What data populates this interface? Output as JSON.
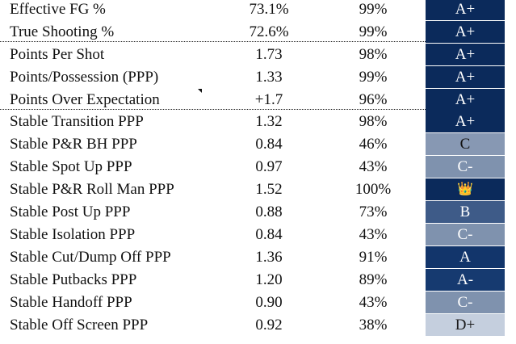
{
  "table": {
    "rows": [
      [
        "Effective FG %",
        "73.1%",
        "99%",
        "A+"
      ],
      [
        "True Shooting %",
        "72.6%",
        "99%",
        "A+"
      ],
      [
        "Points Per Shot",
        "1.73",
        "98%",
        "A+"
      ],
      [
        "Points/Possession (PPP)",
        "1.33",
        "99%",
        "A+"
      ],
      [
        "Points Over Expectation",
        "+1.7",
        "96%",
        "A+"
      ],
      [
        "Stable Transition PPP",
        "1.32",
        "98%",
        "A+"
      ],
      [
        "Stable P&R BH PPP",
        "0.84",
        "46%",
        "C"
      ],
      [
        "Stable Spot Up PPP",
        "0.97",
        "43%",
        "C-"
      ],
      [
        "Stable P&R Roll Man PPP",
        "1.52",
        "100%",
        "👑"
      ],
      [
        "Stable Post Up PPP",
        "0.88",
        "73%",
        "B"
      ],
      [
        "Stable Isolation PPP",
        "0.84",
        "43%",
        "C-"
      ],
      [
        "Stable Cut/Dump Off PPP",
        "1.36",
        "91%",
        "A"
      ],
      [
        "Stable Putbacks PPP",
        "1.20",
        "89%",
        "A-"
      ],
      [
        "Stable Handoff PPP",
        "0.90",
        "43%",
        "C-"
      ],
      [
        "Stable Off Screen PPP",
        "0.92",
        "38%",
        "D+"
      ]
    ]
  }
}
